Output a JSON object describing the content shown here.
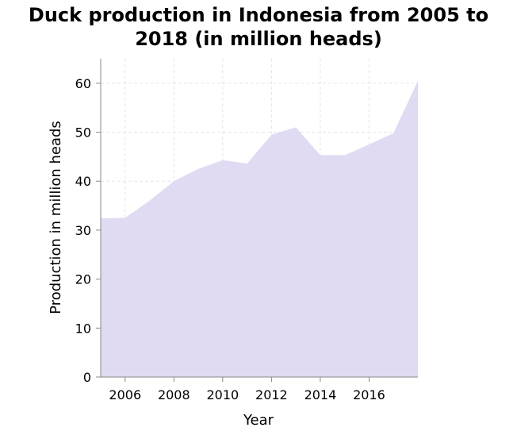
{
  "chart_data": {
    "type": "area",
    "title_lines": [
      "Duck production in Indonesia from 2005 to",
      "2018 (in million heads)"
    ],
    "xlabel": "Year",
    "ylabel": "Production in million heads",
    "x": [
      2005,
      2006,
      2007,
      2008,
      2009,
      2010,
      2011,
      2012,
      2013,
      2014,
      2015,
      2016,
      2017,
      2018
    ],
    "values": [
      32.4,
      32.5,
      36,
      40,
      42.5,
      44.3,
      43.6,
      49.5,
      51,
      45.3,
      45.3,
      47.5,
      49.8,
      60.5
    ],
    "xlim": [
      2005,
      2018
    ],
    "ylim": [
      0,
      65
    ],
    "x_ticks": [
      2006,
      2008,
      2010,
      2012,
      2014,
      2016
    ],
    "y_ticks": [
      0,
      10,
      20,
      30,
      40,
      50,
      60
    ],
    "grid": true,
    "colors": {
      "fill": "#e0dbf3",
      "grid": "#e6e6e6",
      "axis": "#888888"
    }
  }
}
